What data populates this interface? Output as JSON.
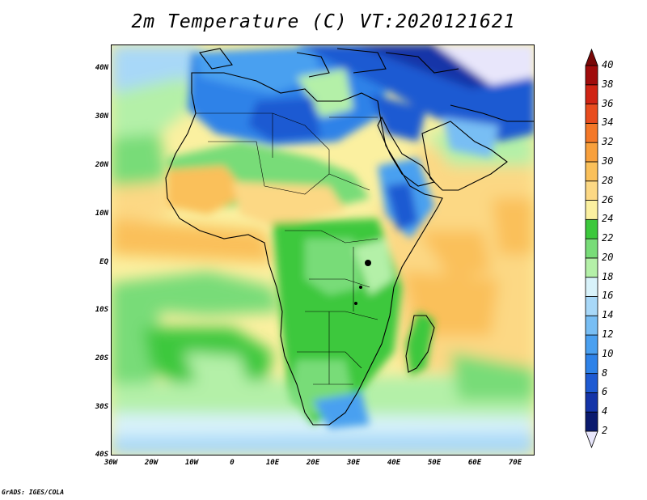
{
  "title": "2m Temperature (C) VT:2020121621",
  "credit": "GrADS: IGES/COLA",
  "map": {
    "variable": "2m Temperature",
    "units": "C",
    "valid_time": "2020121621",
    "projection": "latlon",
    "lon_range": [
      -30,
      75
    ],
    "lat_range": [
      -40,
      45
    ],
    "lat_ticks": [
      "40N",
      "30N",
      "20N",
      "10N",
      "EQ",
      "10S",
      "20S",
      "30S",
      "40S"
    ],
    "lat_values": [
      40,
      30,
      20,
      10,
      0,
      -10,
      -20,
      -30,
      -40
    ],
    "lon_ticks": [
      "30W",
      "20W",
      "10W",
      "0",
      "10E",
      "20E",
      "30E",
      "40E",
      "50E",
      "60E",
      "70E"
    ],
    "lon_values": [
      -30,
      -20,
      -10,
      0,
      10,
      20,
      30,
      40,
      50,
      60,
      70
    ]
  },
  "colorbar": {
    "labels": [
      "2",
      "4",
      "6",
      "8",
      "10",
      "12",
      "14",
      "16",
      "18",
      "20",
      "22",
      "24",
      "26",
      "28",
      "30",
      "32",
      "34",
      "36",
      "38",
      "40"
    ],
    "colors": [
      "#e8e6fb",
      "#0a1a6e",
      "#1434a8",
      "#1e5ad2",
      "#2e82e8",
      "#4aa0f0",
      "#78bef4",
      "#a8d8f8",
      "#d8f2fa",
      "#b4f0a8",
      "#78dc78",
      "#3cc83c",
      "#fbf0a0",
      "#fcd884",
      "#fac05a",
      "#f8a03c",
      "#f47828",
      "#e84c1e",
      "#d02414",
      "#a00c0c",
      "#780808"
    ]
  }
}
